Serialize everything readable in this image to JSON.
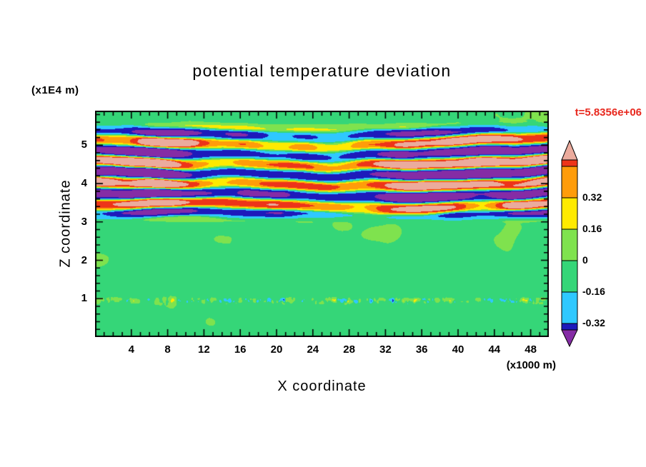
{
  "title": "potential temperature deviation",
  "time_label": "t=5.8356e+06",
  "y_unit_label": "(x1E4 m)",
  "x_unit_label": "(x1000 m)",
  "colors": {
    "time_label": "#E8281E",
    "frame": "#000000",
    "background": "#FFFFFF"
  },
  "x_axis": {
    "label": "X coordinate",
    "range": [
      0,
      50
    ],
    "major_ticks": [
      4,
      8,
      12,
      16,
      20,
      24,
      28,
      32,
      36,
      40,
      44,
      48
    ],
    "major_step": 4,
    "minor_step": 1
  },
  "y_axis": {
    "label": "Z coordinate",
    "range": [
      0,
      5.9
    ],
    "major_ticks": [
      1,
      2,
      3,
      4,
      5
    ],
    "major_step": 1,
    "minor_step": 0.2
  },
  "colorbar": {
    "boundary_labels": [
      "0.32",
      "0.16",
      "0",
      "-0.16",
      "-0.32"
    ],
    "arrow_high_color": "#EBAB9D",
    "arrow_low_color": "#852CA5"
  },
  "chart_data": {
    "type": "heatmap",
    "subtype": "filled-contour",
    "title": "potential temperature deviation",
    "time_annotation": "t=5.8356e+06",
    "xlabel": "X coordinate",
    "ylabel": "Z coordinate",
    "x_unit": "x1000 m",
    "z_unit": "x1E4 m",
    "x_range": [
      0,
      50
    ],
    "z_range": [
      0,
      5.9
    ],
    "levels": [
      -0.48,
      -0.32,
      -0.16,
      0,
      0.16,
      0.32,
      0.44,
      0.56
    ],
    "palette": [
      "#852CA5",
      "#1D1ABB",
      "#2FC8FF",
      "#35D678",
      "#7FE24E",
      "#FFEA00",
      "#FF9C0A",
      "#ED3419",
      "#EBAB9D"
    ],
    "labeled_level_boundaries": [
      -0.32,
      -0.16,
      0,
      0.16,
      0.32
    ],
    "field_features": [
      "strong horizontally elongated wavy bands of alternating positive (salmon/red/orange/yellow, up to >+0.56) and negative (cyan/navy/purple, below -0.32) deviation between z=3 and z=5.5",
      "near-zero slightly negative background (green) over the rest of the domain with patchy weak positive (light green) streaks",
      "thin high-frequency noisy perturbation layer near z=0.95 with small specks reaching warm and cold extremes",
      "colorbar with pointed out-of-range arrows at both ends"
    ],
    "synthesis": {
      "seed": 7,
      "base": -0.05,
      "wave": {
        "z_on": [
          2.95,
          3.3
        ],
        "z_off": [
          5.3,
          5.65
        ],
        "wavelength": 0.55,
        "phase_amp": 2.6,
        "amp_min": 0.22,
        "amp_var": 0.95,
        "neg_damp": 0.78,
        "sharpness": 1.6
      },
      "noise": {
        "amp": 0.095,
        "fx": 0.22,
        "fz": 1.1
      },
      "layer": {
        "z0": 0.95,
        "sigma": 0.07,
        "amp": 0.55,
        "fx": 2.5,
        "fz": 6.0
      }
    }
  }
}
